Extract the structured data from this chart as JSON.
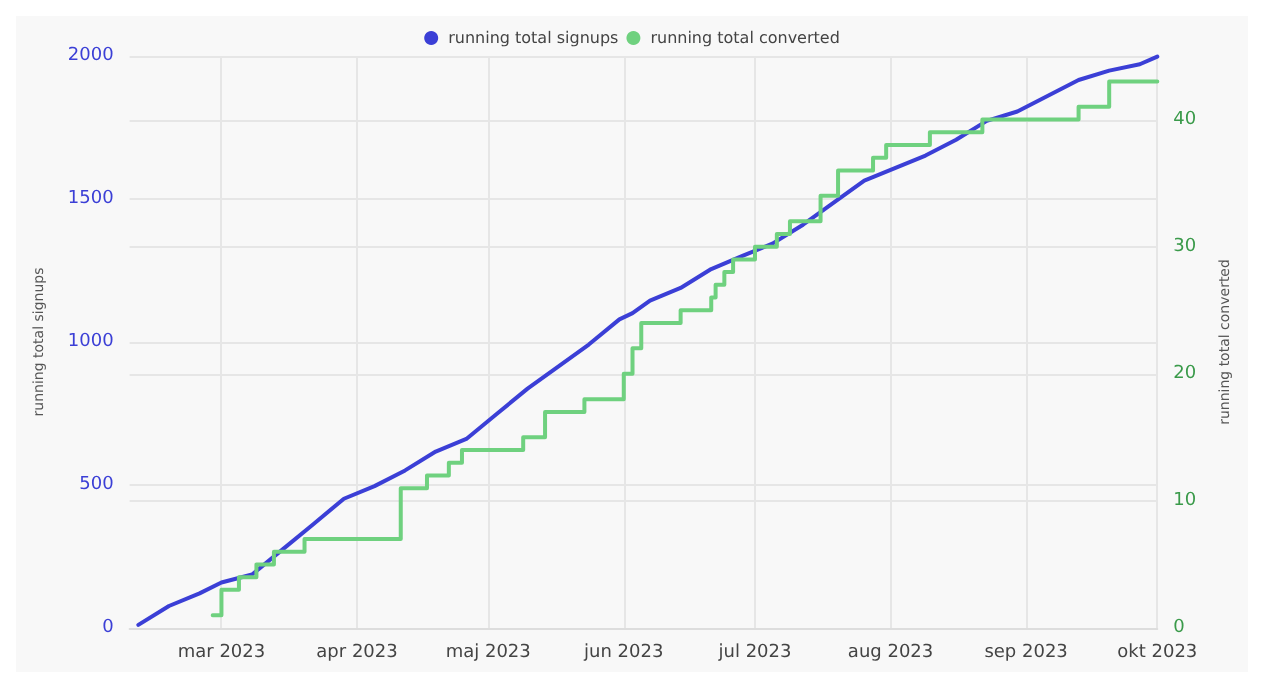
{
  "chart_data": {
    "type": "line",
    "xlim": [
      "2023-02-08",
      "2023-10-01"
    ],
    "xticks": [
      {
        "value": "2023-03-01",
        "label": "mar 2023"
      },
      {
        "value": "2023-04-01",
        "label": "apr 2023"
      },
      {
        "value": "2023-05-01",
        "label": "maj 2023"
      },
      {
        "value": "2023-06-01",
        "label": "jun 2023"
      },
      {
        "value": "2023-07-01",
        "label": "jul 2023"
      },
      {
        "value": "2023-08-01",
        "label": "aug 2023"
      },
      {
        "value": "2023-09-01",
        "label": "sep 2023"
      },
      {
        "value": "2023-10-01",
        "label": "okt 2023"
      }
    ],
    "ylim": [
      0,
      2000
    ],
    "yticks": [
      0,
      500,
      1000,
      1500,
      2000
    ],
    "y2lim": [
      0,
      45
    ],
    "y2ticks": [
      0,
      10,
      20,
      30,
      40
    ],
    "ylabel": "running total signups",
    "y2label": "running total converted",
    "grid": true,
    "legend": "top",
    "marker": "none",
    "series": [
      {
        "name": "running total signups",
        "color": "#3b3fd6",
        "x": [
          "2023-02-10",
          "2023-02-17",
          "2023-02-24",
          "2023-03-01",
          "2023-03-08",
          "2023-03-15",
          "2023-03-22",
          "2023-03-29",
          "2023-04-05",
          "2023-04-12",
          "2023-04-19",
          "2023-04-26",
          "2023-05-03",
          "2023-05-10",
          "2023-05-17",
          "2023-05-24",
          "2023-05-31",
          "2023-06-03",
          "2023-06-07",
          "2023-06-14",
          "2023-06-21",
          "2023-06-28",
          "2023-07-05",
          "2023-07-12",
          "2023-07-19",
          "2023-07-26",
          "2023-08-02",
          "2023-08-09",
          "2023-08-16",
          "2023-08-23",
          "2023-08-30",
          "2023-09-06",
          "2023-09-13",
          "2023-09-20",
          "2023-09-27",
          "2023-10-01"
        ],
        "values": [
          11,
          77,
          121,
          159,
          187,
          275,
          363,
          452,
          496,
          551,
          617,
          661,
          749,
          837,
          914,
          991,
          1079,
          1101,
          1145,
          1189,
          1255,
          1300,
          1344,
          1410,
          1487,
          1564,
          1608,
          1652,
          1707,
          1773,
          1806,
          1861,
          1916,
          1949,
          1971,
          1998
        ]
      },
      {
        "name": "running total converted",
        "color": "#6fd17f",
        "type": "step",
        "axis": "y2",
        "x": [
          "2023-02-27",
          "2023-03-01",
          "2023-03-05",
          "2023-03-09",
          "2023-03-13",
          "2023-03-20",
          "2023-04-11",
          "2023-04-17",
          "2023-04-22",
          "2023-04-25",
          "2023-05-09",
          "2023-05-14",
          "2023-05-23",
          "2023-06-01",
          "2023-06-03",
          "2023-06-05",
          "2023-06-14",
          "2023-06-21",
          "2023-06-22",
          "2023-06-24",
          "2023-06-26",
          "2023-07-01",
          "2023-07-06",
          "2023-07-09",
          "2023-07-16",
          "2023-07-20",
          "2023-07-28",
          "2023-07-31",
          "2023-08-10",
          "2023-08-22",
          "2023-09-13",
          "2023-09-20",
          "2023-10-01"
        ],
        "values": [
          1,
          3,
          4,
          5,
          6,
          7,
          11,
          12,
          13,
          14,
          15,
          17,
          18,
          20,
          22,
          24,
          25,
          26,
          27,
          28,
          29,
          30,
          31,
          32,
          34,
          36,
          37,
          38,
          39,
          40,
          41,
          43,
          43
        ]
      }
    ]
  }
}
